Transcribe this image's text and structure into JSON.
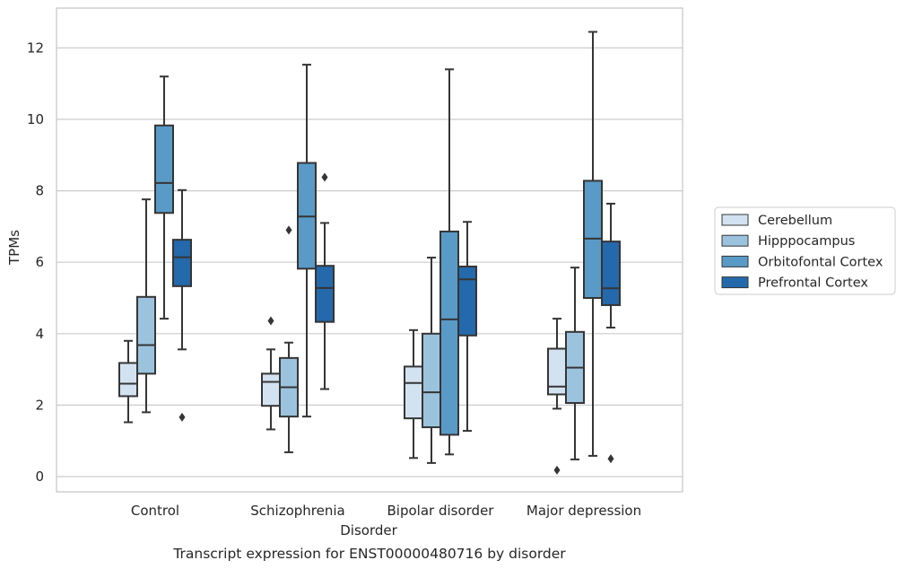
{
  "chart_data": {
    "type": "box",
    "xlabel": "Disorder",
    "ylabel": "TPMs",
    "caption": "Transcript expression for ENST00000480716 by disorder",
    "ylim": [
      -0.4,
      13.1
    ],
    "yticks": [
      "0",
      "2",
      "4",
      "6",
      "8",
      "10",
      "12"
    ],
    "grid": "horizontal",
    "legend_position": "right",
    "categories": [
      "Control",
      "Schizophrenia",
      "Bipolar disorder",
      "Major depression"
    ],
    "series": [
      {
        "name": "Cerebellum",
        "color": "#d3e2f1",
        "boxes": [
          {
            "whisker_low": 1.52,
            "q1": 2.25,
            "median": 2.6,
            "q3": 3.18,
            "whisker_high": 3.8,
            "outliers": []
          },
          {
            "whisker_low": 1.32,
            "q1": 1.98,
            "median": 2.65,
            "q3": 2.88,
            "whisker_high": 3.56,
            "outliers": [
              4.36
            ]
          },
          {
            "whisker_low": 0.52,
            "q1": 1.63,
            "median": 2.62,
            "q3": 3.08,
            "whisker_high": 4.1,
            "outliers": []
          },
          {
            "whisker_low": 1.9,
            "q1": 2.3,
            "median": 2.52,
            "q3": 3.58,
            "whisker_high": 4.42,
            "outliers": [
              0.18
            ]
          }
        ]
      },
      {
        "name": "Hipppocampus",
        "color": "#9cc3de",
        "boxes": [
          {
            "whisker_low": 1.8,
            "q1": 2.88,
            "median": 3.68,
            "q3": 5.03,
            "whisker_high": 7.76,
            "outliers": []
          },
          {
            "whisker_low": 0.68,
            "q1": 1.68,
            "median": 2.5,
            "q3": 3.32,
            "whisker_high": 3.75,
            "outliers": [
              6.9
            ]
          },
          {
            "whisker_low": 0.38,
            "q1": 1.38,
            "median": 2.36,
            "q3": 4.0,
            "whisker_high": 6.13,
            "outliers": []
          },
          {
            "whisker_low": 0.48,
            "q1": 2.06,
            "median": 3.05,
            "q3": 4.05,
            "whisker_high": 5.85,
            "outliers": []
          }
        ]
      },
      {
        "name": "Orbitofontal Cortex",
        "color": "#5a9ac6",
        "boxes": [
          {
            "whisker_low": 4.42,
            "q1": 7.38,
            "median": 8.22,
            "q3": 9.83,
            "whisker_high": 11.2,
            "outliers": []
          },
          {
            "whisker_low": 1.68,
            "q1": 5.82,
            "median": 7.28,
            "q3": 8.78,
            "whisker_high": 11.53,
            "outliers": []
          },
          {
            "whisker_low": 0.62,
            "q1": 1.17,
            "median": 4.4,
            "q3": 6.86,
            "whisker_high": 11.4,
            "outliers": []
          },
          {
            "whisker_low": 0.58,
            "q1": 5.0,
            "median": 6.66,
            "q3": 8.28,
            "whisker_high": 12.45,
            "outliers": []
          }
        ]
      },
      {
        "name": "Prefrontal Cortex",
        "color": "#2469ab",
        "boxes": [
          {
            "whisker_low": 3.56,
            "q1": 5.33,
            "median": 6.14,
            "q3": 6.63,
            "whisker_high": 8.02,
            "outliers": [
              1.66
            ]
          },
          {
            "whisker_low": 2.45,
            "q1": 4.33,
            "median": 5.28,
            "q3": 5.9,
            "whisker_high": 7.1,
            "outliers": [
              8.38
            ]
          },
          {
            "whisker_low": 1.28,
            "q1": 3.95,
            "median": 5.52,
            "q3": 5.88,
            "whisker_high": 7.13,
            "outliers": []
          },
          {
            "whisker_low": 4.17,
            "q1": 4.8,
            "median": 5.27,
            "q3": 6.58,
            "whisker_high": 7.64,
            "outliers": [
              0.5
            ]
          }
        ]
      }
    ]
  },
  "colors": {
    "edge": "#353535",
    "grid": "#cccccc",
    "frame": "#cccccc",
    "text": "#262626"
  }
}
